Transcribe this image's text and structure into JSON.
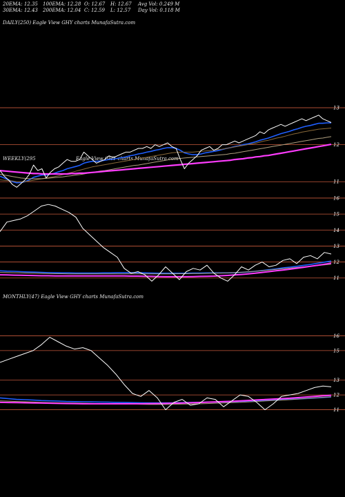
{
  "header": {
    "ema20": "20EMA: 12.35",
    "ema30": "30EMA: 12.43",
    "ema100": "100EMA: 12.28",
    "ema200": "200EMA: 12.04",
    "open": "O: 12.67",
    "close": "C: 12.59",
    "high": "H: 12.67",
    "low": "L: 12.57",
    "avg_vol": "Avg Vol: 0.249 M",
    "day_vol": "Day Vol: 0.118 M"
  },
  "panels": {
    "daily": {
      "label": "DAILY(250) Eagle   View   GHY charts MunafaSutra.com"
    },
    "weekly": {
      "label": "WEEKLY(295",
      "watermark": "Eagle   View   GHY charts MunafaSutra.com"
    },
    "monthly": {
      "label": "MONTHLY(47) Eagle   View   GHY charts MunafaSutra.com"
    }
  },
  "colors": {
    "background": "#000000",
    "price": "#ffffff",
    "ema_fast": "#1f5fff",
    "ema_long": "#ff3cff",
    "grid": "#c85a3c"
  },
  "chart_data": [
    {
      "type": "line",
      "title": "DAILY(250)",
      "y_ticks": [
        11,
        12,
        13
      ],
      "ylim": [
        10.5,
        13.3
      ],
      "series": [
        {
          "name": "price",
          "values": [
            11.3,
            11.15,
            11.05,
            10.92,
            10.85,
            10.95,
            11.05,
            11.2,
            11.45,
            11.3,
            11.35,
            11.1,
            11.25,
            11.35,
            11.4,
            11.5,
            11.6,
            11.55,
            11.55,
            11.6,
            11.8,
            11.7,
            11.6,
            11.5,
            11.55,
            11.6,
            11.7,
            11.65,
            11.7,
            11.75,
            11.8,
            11.8,
            11.85,
            11.9,
            11.9,
            11.95,
            11.9,
            12.0,
            11.95,
            12.0,
            12.05,
            11.95,
            11.9,
            11.6,
            11.35,
            11.5,
            11.6,
            11.7,
            11.85,
            11.9,
            11.95,
            11.85,
            11.9,
            12.0,
            12.0,
            12.05,
            12.1,
            12.05,
            12.1,
            12.15,
            12.2,
            12.25,
            12.35,
            12.3,
            12.4,
            12.45,
            12.5,
            12.55,
            12.5,
            12.55,
            12.6,
            12.65,
            12.7,
            12.65,
            12.7,
            12.75,
            12.8,
            12.7,
            12.65,
            12.6
          ]
        },
        {
          "name": "",
          "values": [
            11.15,
            11.1,
            11.05,
            11.0,
            10.97,
            10.98,
            11.0,
            11.05,
            11.12,
            11.15,
            11.18,
            11.18,
            11.2,
            11.23,
            11.27,
            11.3,
            11.35,
            11.38,
            11.41,
            11.44,
            11.5,
            11.53,
            11.55,
            11.55,
            11.56,
            11.58,
            11.6,
            11.61,
            11.63,
            11.65,
            11.67,
            11.7,
            11.72,
            11.75,
            11.77,
            11.8,
            11.82,
            11.85,
            11.87,
            11.9,
            11.92,
            11.92,
            11.9,
            11.85,
            11.78,
            11.75,
            11.73,
            11.73,
            11.75,
            11.78,
            11.8,
            11.82,
            11.84,
            11.87,
            11.9,
            11.92,
            11.95,
            11.97,
            12.0,
            12.02,
            12.05,
            12.08,
            12.12,
            12.15,
            12.18,
            12.22,
            12.26,
            12.3,
            12.33,
            12.36,
            12.4,
            12.43,
            12.47,
            12.5,
            12.52,
            12.55,
            12.58,
            12.58,
            12.59,
            12.59
          ]
        },
        {
          "name": "",
          "values": [
            11.05,
            11.04,
            11.03,
            11.02,
            11.0,
            11.0,
            11.0,
            11.02,
            11.04,
            11.06,
            11.08,
            11.1,
            11.12,
            11.14,
            11.16,
            11.19,
            11.22,
            11.25,
            11.28,
            11.31,
            11.34,
            11.37,
            11.4,
            11.42,
            11.44,
            11.46,
            11.48,
            11.5,
            11.52,
            11.54,
            11.56,
            11.58,
            11.6,
            11.62,
            11.64,
            11.66,
            11.68,
            11.7,
            11.72,
            11.74,
            11.76,
            11.78,
            11.79,
            11.8,
            11.8,
            11.8,
            11.8,
            11.81,
            11.82,
            11.83,
            11.84,
            11.85,
            11.87,
            11.88,
            11.9,
            11.92,
            11.94,
            11.96,
            11.98,
            12.0,
            12.02,
            12.04,
            12.07,
            12.1,
            12.12,
            12.15,
            12.18,
            12.2,
            12.23,
            12.26,
            12.29,
            12.31,
            12.34,
            12.36,
            12.38,
            12.4,
            12.42,
            12.43,
            12.44,
            12.45
          ]
        },
        {
          "name": "",
          "values": [
            11.2,
            11.18,
            11.16,
            11.14,
            11.12,
            11.1,
            11.09,
            11.08,
            11.08,
            11.08,
            11.08,
            11.09,
            11.1,
            11.11,
            11.12,
            11.13,
            11.15,
            11.16,
            11.18,
            11.19,
            11.21,
            11.23,
            11.25,
            11.27,
            11.29,
            11.3,
            11.32,
            11.34,
            11.36,
            11.38,
            11.4,
            11.42,
            11.44,
            11.45,
            11.47,
            11.49,
            11.51,
            11.53,
            11.55,
            11.57,
            11.59,
            11.61,
            11.62,
            11.63,
            11.64,
            11.65,
            11.66,
            11.67,
            11.68,
            11.69,
            11.7,
            11.71,
            11.72,
            11.73,
            11.74,
            11.76,
            11.77,
            11.79,
            11.81,
            11.83,
            11.85,
            11.87,
            11.89,
            11.91,
            11.93,
            11.95,
            11.97,
            11.99,
            12.01,
            12.03,
            12.05,
            12.07,
            12.09,
            12.11,
            12.13,
            12.15,
            12.17,
            12.18,
            12.2,
            12.22
          ]
        },
        {
          "name": "",
          "values": [
            11.3,
            11.29,
            11.28,
            11.27,
            11.26,
            11.25,
            11.24,
            11.23,
            11.22,
            11.22,
            11.21,
            11.21,
            11.21,
            11.21,
            11.21,
            11.21,
            11.21,
            11.22,
            11.22,
            11.23,
            11.23,
            11.24,
            11.25,
            11.26,
            11.27,
            11.28,
            11.29,
            11.3,
            11.31,
            11.32,
            11.33,
            11.34,
            11.35,
            11.36,
            11.37,
            11.38,
            11.39,
            11.4,
            11.41,
            11.42,
            11.43,
            11.44,
            11.45,
            11.46,
            11.47,
            11.48,
            11.49,
            11.5,
            11.51,
            11.52,
            11.53,
            11.54,
            11.55,
            11.56,
            11.57,
            11.58,
            11.6,
            11.61,
            11.62,
            11.64,
            11.65,
            11.67,
            11.68,
            11.7,
            11.71,
            11.73,
            11.75,
            11.77,
            11.79,
            11.81,
            11.83,
            11.85,
            11.87,
            11.89,
            11.91,
            11.93,
            11.95,
            11.97,
            11.99,
            12.01
          ]
        }
      ]
    },
    {
      "type": "line",
      "title": "WEEKLY(295",
      "y_ticks": [
        11,
        12,
        13,
        14,
        15,
        16
      ],
      "ylim": [
        10.6,
        16.3
      ],
      "series": [
        {
          "name": "price",
          "values": [
            13.9,
            14.5,
            14.6,
            14.7,
            14.9,
            15.2,
            15.5,
            15.6,
            15.5,
            15.3,
            15.1,
            14.8,
            14.1,
            13.7,
            13.3,
            12.9,
            12.6,
            12.3,
            11.6,
            11.3,
            11.4,
            11.2,
            10.8,
            11.2,
            11.7,
            11.3,
            10.9,
            11.4,
            11.6,
            11.5,
            11.8,
            11.3,
            11.0,
            10.8,
            11.2,
            11.7,
            11.5,
            11.8,
            12.0,
            11.7,
            11.8,
            12.1,
            12.2,
            11.9,
            12.3,
            12.4,
            12.2,
            12.6,
            12.5
          ]
        },
        {
          "name": "",
          "values": [
            11.45,
            11.43,
            11.42,
            11.4,
            11.38,
            11.37,
            11.35,
            11.34,
            11.33,
            11.32,
            11.32,
            11.31,
            11.31,
            11.31,
            11.31,
            11.32,
            11.32,
            11.33,
            11.33,
            11.33,
            11.33,
            11.32,
            11.31,
            11.3,
            11.3,
            11.3,
            11.3,
            11.3,
            11.31,
            11.31,
            11.32,
            11.32,
            11.32,
            11.32,
            11.33,
            11.35,
            11.38,
            11.42,
            11.47,
            11.52,
            11.57,
            11.63,
            11.68,
            11.73,
            11.79,
            11.85,
            11.92,
            11.99,
            12.06
          ]
        },
        {
          "name": "",
          "values": [
            11.35,
            11.34,
            11.33,
            11.32,
            11.31,
            11.3,
            11.29,
            11.28,
            11.27,
            11.27,
            11.26,
            11.26,
            11.26,
            11.26,
            11.26,
            11.26,
            11.26,
            11.26,
            11.26,
            11.26,
            11.26,
            11.26,
            11.26,
            11.26,
            11.26,
            11.26,
            11.27,
            11.27,
            11.28,
            11.28,
            11.29,
            11.3,
            11.31,
            11.32,
            11.34,
            11.36,
            11.39,
            11.42,
            11.46,
            11.5,
            11.54,
            11.58,
            11.62,
            11.66,
            11.7,
            11.74,
            11.78,
            11.82,
            11.86
          ]
        },
        {
          "name": "",
          "values": [
            11.2,
            11.19,
            11.18,
            11.17,
            11.16,
            11.15,
            11.14,
            11.14,
            11.13,
            11.13,
            11.13,
            11.13,
            11.13,
            11.13,
            11.13,
            11.13,
            11.13,
            11.13,
            11.13,
            11.12,
            11.12,
            11.11,
            11.1,
            11.09,
            11.08,
            11.08,
            11.08,
            11.08,
            11.09,
            11.1,
            11.11,
            11.12,
            11.14,
            11.16,
            11.19,
            11.22,
            11.26,
            11.3,
            11.35,
            11.4,
            11.45,
            11.5,
            11.55,
            11.61,
            11.67,
            11.73,
            11.79,
            11.86,
            11.93
          ]
        }
      ]
    },
    {
      "type": "line",
      "title": "MONTHLY(47)",
      "y_ticks": [
        11,
        12,
        13,
        15,
        16
      ],
      "ylim": [
        10.7,
        16.3
      ],
      "series": [
        {
          "name": "price",
          "values": [
            14.2,
            14.4,
            14.6,
            14.8,
            15.0,
            15.4,
            15.9,
            15.6,
            15.3,
            15.1,
            15.2,
            15.0,
            14.5,
            14.0,
            13.4,
            12.7,
            12.1,
            11.9,
            12.3,
            11.8,
            11.0,
            11.5,
            11.7,
            11.3,
            11.4,
            11.8,
            11.7,
            11.2,
            11.6,
            12.0,
            11.9,
            11.5,
            11.0,
            11.4,
            11.9,
            12.0,
            12.1,
            12.3,
            12.5,
            12.6,
            12.55
          ]
        },
        {
          "name": "",
          "values": [
            11.8,
            11.75,
            11.7,
            11.68,
            11.65,
            11.62,
            11.6,
            11.58,
            11.56,
            11.55,
            11.54,
            11.53,
            11.52,
            11.51,
            11.5,
            11.49,
            11.48,
            11.47,
            11.46,
            11.46,
            11.46,
            11.47,
            11.48,
            11.49,
            11.5,
            11.51,
            11.52,
            11.53,
            11.55,
            11.57,
            11.59,
            11.61,
            11.63,
            11.65,
            11.67,
            11.7,
            11.73,
            11.76,
            11.79,
            11.83,
            11.86
          ]
        },
        {
          "name": "",
          "values": [
            11.6,
            11.58,
            11.56,
            11.54,
            11.52,
            11.5,
            11.48,
            11.47,
            11.46,
            11.45,
            11.44,
            11.43,
            11.42,
            11.41,
            11.4,
            11.39,
            11.38,
            11.37,
            11.36,
            11.36,
            11.36,
            11.37,
            11.38,
            11.39,
            11.4,
            11.42,
            11.44,
            11.46,
            11.48,
            11.5,
            11.53,
            11.56,
            11.59,
            11.62,
            11.65,
            11.68,
            11.72,
            11.76,
            11.8,
            11.84,
            11.88
          ]
        },
        {
          "name": "",
          "values": [
            11.5,
            11.49,
            11.48,
            11.47,
            11.46,
            11.45,
            11.44,
            11.43,
            11.42,
            11.41,
            11.4,
            11.4,
            11.4,
            11.4,
            11.4,
            11.4,
            11.4,
            11.4,
            11.41,
            11.42,
            11.43,
            11.44,
            11.45,
            11.47,
            11.49,
            11.51,
            11.53,
            11.55,
            11.57,
            11.6,
            11.63,
            11.66,
            11.69,
            11.72,
            11.75,
            11.78,
            11.82,
            11.86,
            11.9,
            11.94,
            11.98
          ]
        }
      ]
    }
  ]
}
